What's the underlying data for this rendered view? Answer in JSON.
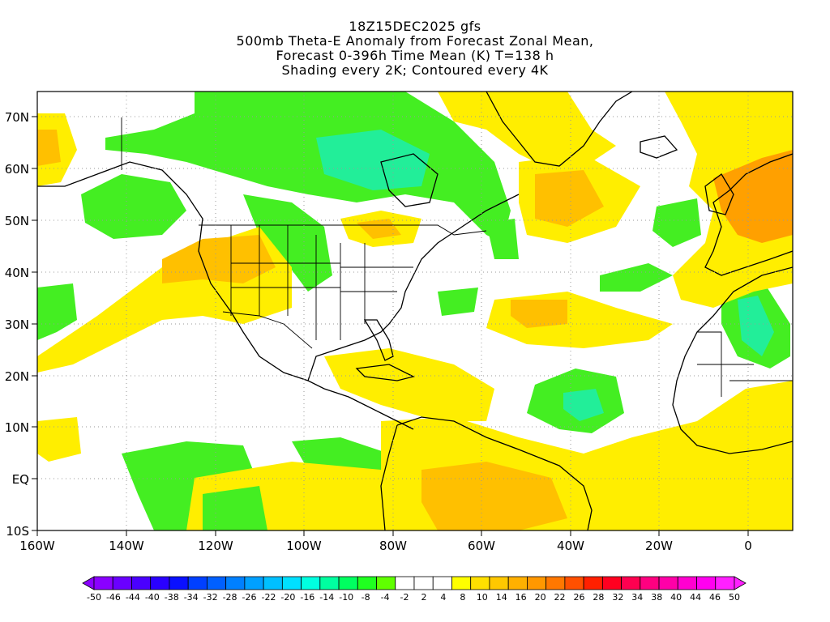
{
  "header": {
    "line1": "18Z15DEC2025 gfs",
    "line2": "500mb Theta-E Anomaly from Forecast Zonal Mean,",
    "line3": "Forecast 0-396h Time Mean (K) T=138 h",
    "line4": "Shading every 2K; Contoured every 4K"
  },
  "map": {
    "lon_range": [
      -160,
      10
    ],
    "lat_range": [
      -10,
      75
    ],
    "lon_ticks": [
      "160W",
      "140W",
      "120W",
      "100W",
      "80W",
      "60W",
      "40W",
      "20W",
      "0"
    ],
    "lat_ticks": [
      "10S",
      "EQ",
      "10N",
      "20N",
      "30N",
      "40N",
      "50N",
      "60N",
      "70N"
    ]
  },
  "colorbar": {
    "labels": [
      "-50",
      "-46",
      "-44",
      "-40",
      "-38",
      "-34",
      "-32",
      "-28",
      "-26",
      "-22",
      "-20",
      "-16",
      "-14",
      "-10",
      "-8",
      "-4",
      "-2",
      "2",
      "4",
      "8",
      "10",
      "14",
      "16",
      "20",
      "22",
      "26",
      "28",
      "32",
      "34",
      "38",
      "40",
      "44",
      "46",
      "50"
    ],
    "colors": [
      "#8a00ff",
      "#6a00ff",
      "#4a00ff",
      "#2a00ff",
      "#0a10ff",
      "#0040ff",
      "#0060ff",
      "#0080ff",
      "#00a0ff",
      "#00c0ff",
      "#00e0ff",
      "#00ffe0",
      "#00ffa0",
      "#00ff60",
      "#20ff20",
      "#60ff00",
      "#ffffff",
      "#ffffff",
      "#ffffff",
      "#ffff00",
      "#ffe000",
      "#ffc800",
      "#ffb000",
      "#ff9800",
      "#ff7800",
      "#ff5000",
      "#ff2000",
      "#ff0020",
      "#ff0050",
      "#ff0080",
      "#ff00a8",
      "#ff00d0",
      "#ff00f0",
      "#ff20ff"
    ]
  }
}
